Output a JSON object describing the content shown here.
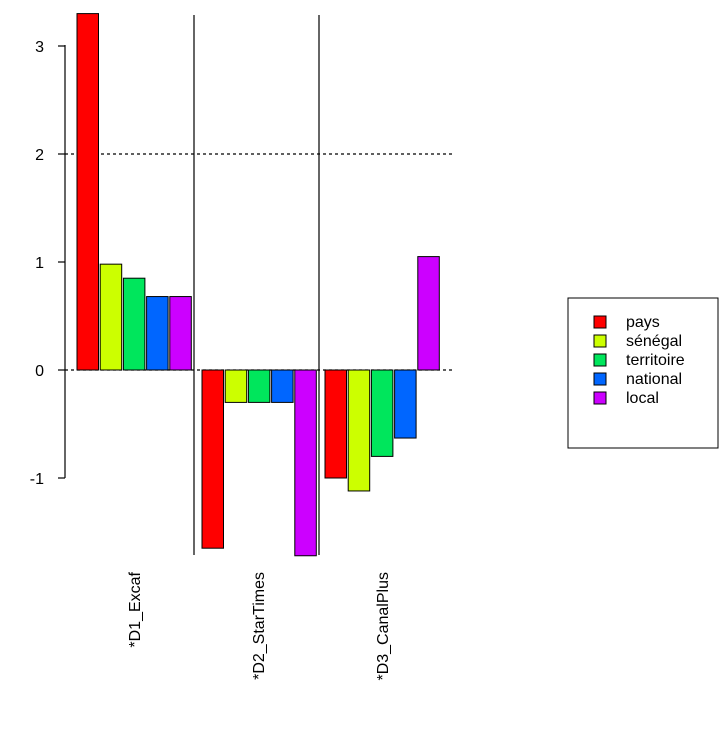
{
  "chart_data": {
    "type": "bar",
    "categories": [
      "*D1_Excaf",
      "*D2_StarTimes",
      "*D3_CanalPlus"
    ],
    "series": [
      {
        "name": "pays",
        "color": "#ff0000",
        "values": [
          3.3,
          -1.65,
          -1.0
        ]
      },
      {
        "name": "sénégal",
        "color": "#ccff00",
        "values": [
          0.98,
          -0.3,
          -1.12
        ]
      },
      {
        "name": "territoire",
        "color": "#00e65c",
        "values": [
          0.85,
          -0.3,
          -0.8
        ]
      },
      {
        "name": "national",
        "color": "#0066ff",
        "values": [
          0.68,
          -0.3,
          -0.63
        ]
      },
      {
        "name": "local",
        "color": "#cc00ff",
        "values": [
          0.68,
          -1.72,
          1.05
        ]
      }
    ],
    "yticks": [
      "-1",
      "0",
      "1",
      "2",
      "3"
    ],
    "ylim": [
      -1.75,
      3.3
    ],
    "reference_lines": [
      {
        "value": 2,
        "style": "dotted"
      },
      {
        "value": 0,
        "style": "dotted"
      }
    ],
    "legend_position": "right",
    "grid": false
  }
}
